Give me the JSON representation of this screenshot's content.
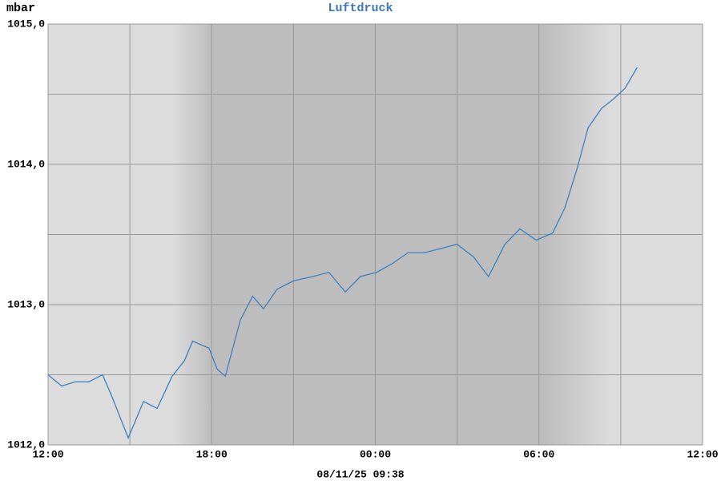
{
  "chart_data": {
    "type": "line",
    "title": "Luftdruck",
    "y_label": "mbar",
    "footer": "08/11/25 09:38",
    "xlim": [
      0,
      24
    ],
    "xticks": [
      {
        "value": 0,
        "label": "12:00"
      },
      {
        "value": 6,
        "label": "18:00"
      },
      {
        "value": 12,
        "label": "00:00"
      },
      {
        "value": 18,
        "label": "06:00"
      },
      {
        "value": 24,
        "label": "12:00"
      }
    ],
    "xminor": [
      3,
      9,
      15,
      21
    ],
    "ylim": [
      1012,
      1015
    ],
    "yticks": [
      {
        "value": 1012,
        "label": "1012,0"
      },
      {
        "value": 1013,
        "label": "1013,0"
      },
      {
        "value": 1014,
        "label": "1014,0"
      },
      {
        "value": 1015,
        "label": "1015,0"
      }
    ],
    "yminor": [
      1012.5,
      1013.5,
      1014.5
    ],
    "grid": true,
    "x": [
      0,
      0.5,
      1,
      1.5,
      2,
      2.35,
      2.94,
      3.5,
      4,
      4.55,
      5,
      5.3,
      5.9,
      6.2,
      6.5,
      7.05,
      7.5,
      7.9,
      8.4,
      9,
      9.7,
      10.3,
      10.9,
      11.45,
      12.05,
      12.6,
      13.2,
      13.8,
      14.4,
      15,
      15.6,
      16.15,
      16.75,
      17.3,
      17.9,
      18.5,
      18.95,
      19.4,
      19.8,
      20.3,
      20.7,
      21.15,
      21.6
    ],
    "series": [
      {
        "name": "Luftdruck",
        "color": "#3d7fc0",
        "values": [
          1012.5,
          1012.42,
          1012.45,
          1012.45,
          1012.5,
          1012.34,
          1012.05,
          1012.31,
          1012.26,
          1012.49,
          1012.6,
          1012.74,
          1012.69,
          1012.54,
          1012.49,
          1012.89,
          1013.06,
          1012.97,
          1013.11,
          1013.17,
          1013.2,
          1013.23,
          1013.09,
          1013.2,
          1013.23,
          1013.29,
          1013.37,
          1013.37,
          1013.4,
          1013.43,
          1013.34,
          1013.2,
          1013.43,
          1013.54,
          1013.46,
          1013.51,
          1013.69,
          1013.97,
          1014.26,
          1014.4,
          1014.46,
          1014.54,
          1014.69
        ]
      }
    ]
  }
}
